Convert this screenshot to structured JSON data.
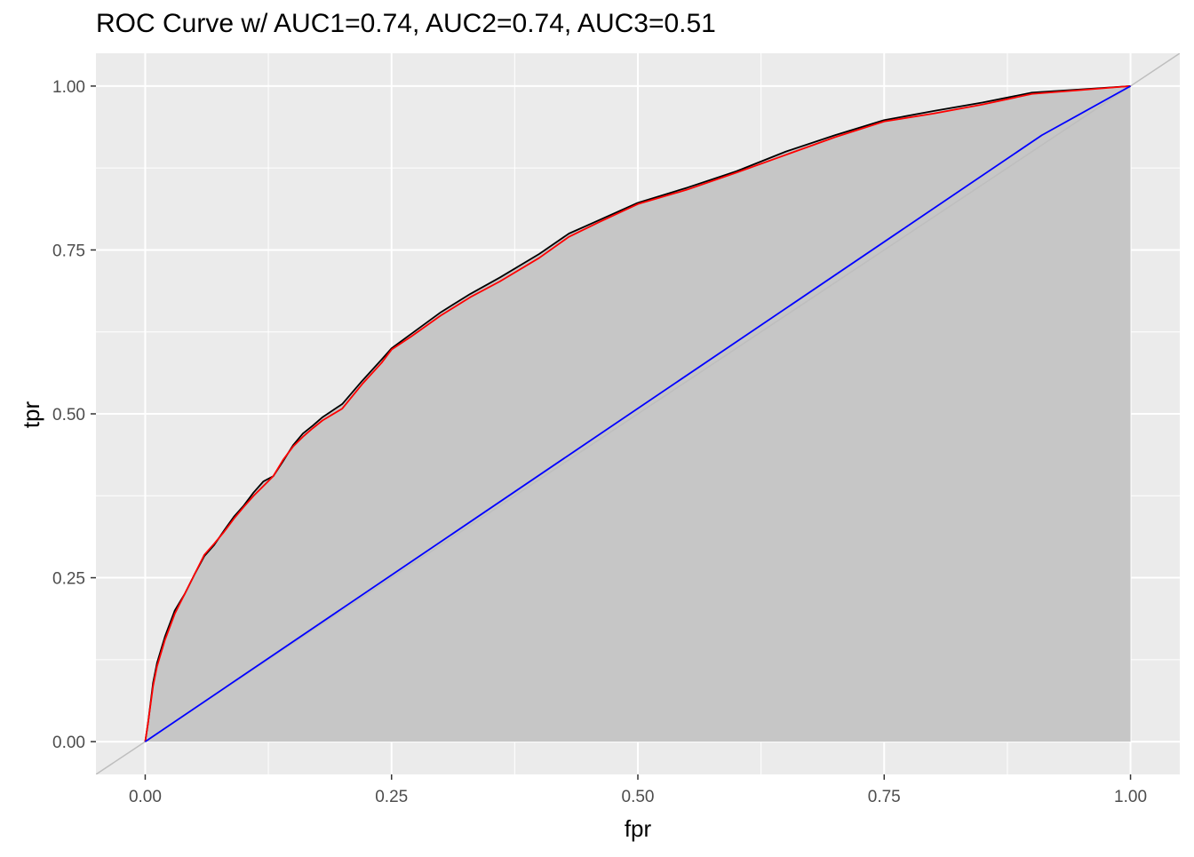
{
  "chart_data": {
    "type": "line",
    "title": "ROC Curve w/ AUC1=0.74, AUC2=0.74, AUC3=0.51",
    "xlabel": "fpr",
    "ylabel": "tpr",
    "xlim": [
      -0.05,
      1.05
    ],
    "ylim": [
      -0.05,
      1.05
    ],
    "x_ticks": [
      0,
      0.25,
      0.5,
      0.75,
      1
    ],
    "x_tick_labels": [
      "0.00",
      "0.25",
      "0.50",
      "0.75",
      "1.00"
    ],
    "y_ticks": [
      0,
      0.25,
      0.5,
      0.75,
      1
    ],
    "y_tick_labels": [
      "0.00",
      "0.25",
      "0.50",
      "0.75",
      "1.00"
    ],
    "grid": true,
    "legend": "none",
    "panel_background": "#EBEBEB",
    "area_fill": "#C6C6C6",
    "series": [
      {
        "color": "#000000",
        "fill_area": true,
        "x": [
          0,
          0.003,
          0.008,
          0.012,
          0.02,
          0.03,
          0.04,
          0.05,
          0.06,
          0.07,
          0.08,
          0.09,
          0.1,
          0.11,
          0.12,
          0.13,
          0.14,
          0.15,
          0.16,
          0.17,
          0.18,
          0.2,
          0.22,
          0.24,
          0.25,
          0.27,
          0.3,
          0.33,
          0.36,
          0.4,
          0.43,
          0.46,
          0.5,
          0.55,
          0.6,
          0.65,
          0.7,
          0.75,
          0.8,
          0.85,
          0.9,
          0.95,
          1.0
        ],
        "y": [
          0,
          0.03,
          0.09,
          0.12,
          0.16,
          0.2,
          0.225,
          0.255,
          0.283,
          0.3,
          0.322,
          0.343,
          0.36,
          0.38,
          0.397,
          0.405,
          0.428,
          0.452,
          0.47,
          0.482,
          0.495,
          0.515,
          0.55,
          0.583,
          0.6,
          0.622,
          0.655,
          0.683,
          0.708,
          0.744,
          0.775,
          0.795,
          0.822,
          0.845,
          0.87,
          0.9,
          0.925,
          0.948,
          0.962,
          0.975,
          0.99,
          0.995,
          1.0
        ]
      },
      {
        "color": "#FF0000",
        "fill_area": false,
        "x": [
          0,
          0.003,
          0.008,
          0.012,
          0.02,
          0.03,
          0.04,
          0.05,
          0.06,
          0.07,
          0.08,
          0.09,
          0.1,
          0.11,
          0.12,
          0.13,
          0.14,
          0.15,
          0.16,
          0.17,
          0.18,
          0.2,
          0.22,
          0.24,
          0.25,
          0.27,
          0.3,
          0.33,
          0.36,
          0.4,
          0.43,
          0.46,
          0.5,
          0.55,
          0.6,
          0.65,
          0.7,
          0.75,
          0.8,
          0.85,
          0.9,
          0.95,
          1.0
        ],
        "y": [
          0,
          0.03,
          0.085,
          0.115,
          0.155,
          0.195,
          0.225,
          0.255,
          0.285,
          0.302,
          0.32,
          0.34,
          0.358,
          0.375,
          0.39,
          0.405,
          0.43,
          0.45,
          0.465,
          0.478,
          0.49,
          0.508,
          0.545,
          0.578,
          0.598,
          0.618,
          0.65,
          0.678,
          0.702,
          0.738,
          0.77,
          0.792,
          0.82,
          0.842,
          0.868,
          0.895,
          0.922,
          0.946,
          0.958,
          0.972,
          0.988,
          0.994,
          1.0
        ]
      },
      {
        "color": "#0000FF",
        "fill_area": false,
        "x": [
          0,
          0.91,
          1.0
        ],
        "y": [
          0,
          0.925,
          1.0
        ]
      },
      {
        "color": "#BEBEBE",
        "fill_area": false,
        "reference_line": true,
        "x": [
          -0.05,
          1.05
        ],
        "y": [
          -0.05,
          1.05
        ]
      }
    ]
  }
}
